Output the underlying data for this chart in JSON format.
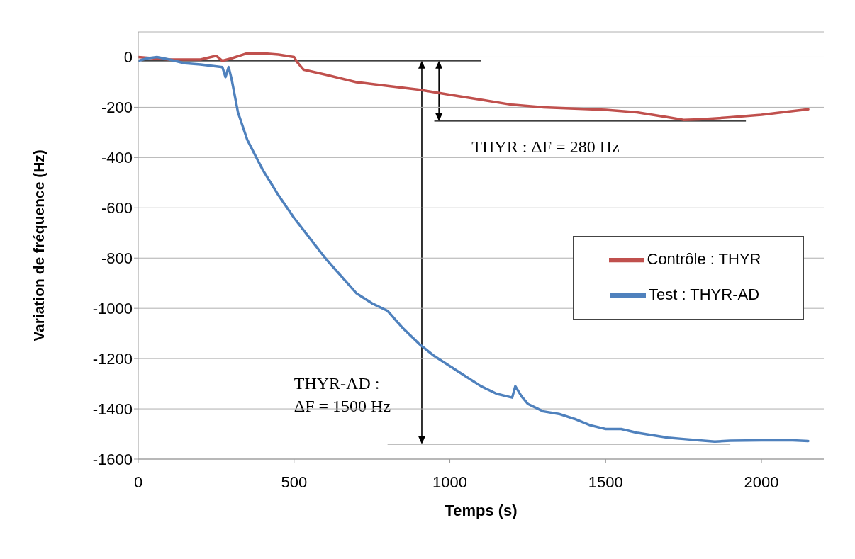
{
  "chart_data": {
    "type": "line",
    "xlabel": "Temps (s)",
    "ylabel": "Variation de fréquence (Hz)",
    "xlim": [
      0,
      2200
    ],
    "xticks": [
      0,
      500,
      1000,
      1500,
      2000
    ],
    "ylim": [
      -1600,
      100
    ],
    "yticks": [
      -1600,
      -1400,
      -1200,
      -1000,
      -800,
      -600,
      -400,
      -200,
      0
    ],
    "ref_lines": [
      {
        "axis": "y",
        "value": -15,
        "color": "#000000"
      },
      {
        "axis": "y",
        "value": -255,
        "color": "#000000"
      },
      {
        "axis": "y",
        "value": -1540,
        "color": "#000000"
      }
    ],
    "grid": "y",
    "legend": "right",
    "marker": "none",
    "line_style": "solid",
    "annotations": [
      "THYR : ΔF = 280 Hz",
      "THYR-AD :\nΔF = 1500 Hz"
    ],
    "series": [
      {
        "name": "Contrôle : THYR",
        "color": "#c0504d",
        "x": [
          0,
          100,
          200,
          250,
          270,
          300,
          350,
          400,
          450,
          500,
          510,
          530,
          600,
          700,
          800,
          900,
          1000,
          1100,
          1200,
          1300,
          1400,
          1500,
          1600,
          1700,
          1750,
          1800,
          1900,
          2000,
          2100,
          2150
        ],
        "values": [
          0,
          -10,
          -10,
          5,
          -15,
          -5,
          15,
          15,
          10,
          0,
          -20,
          -50,
          -70,
          -100,
          -115,
          -130,
          -150,
          -170,
          -190,
          -200,
          -205,
          -210,
          -220,
          -240,
          -250,
          -248,
          -240,
          -230,
          -215,
          -208
        ]
      },
      {
        "name": "Test : THYR-AD",
        "color": "#4f81bd",
        "x": [
          0,
          30,
          60,
          100,
          150,
          200,
          270,
          280,
          290,
          300,
          320,
          350,
          400,
          450,
          500,
          550,
          600,
          650,
          700,
          750,
          800,
          850,
          900,
          950,
          1000,
          1050,
          1100,
          1150,
          1200,
          1210,
          1230,
          1250,
          1300,
          1350,
          1400,
          1450,
          1500,
          1550,
          1600,
          1650,
          1700,
          1750,
          1800,
          1850,
          1900,
          2000,
          2100,
          2150
        ],
        "values": [
          -15,
          -5,
          0,
          -10,
          -25,
          -30,
          -40,
          -80,
          -40,
          -90,
          -220,
          -330,
          -450,
          -550,
          -640,
          -720,
          -800,
          -870,
          -940,
          -980,
          -1010,
          -1080,
          -1140,
          -1190,
          -1230,
          -1270,
          -1310,
          -1340,
          -1355,
          -1310,
          -1350,
          -1380,
          -1410,
          -1420,
          -1440,
          -1465,
          -1480,
          -1480,
          -1495,
          -1505,
          -1515,
          -1520,
          -1525,
          -1530,
          -1527,
          -1525,
          -1525,
          -1528
        ]
      }
    ]
  }
}
